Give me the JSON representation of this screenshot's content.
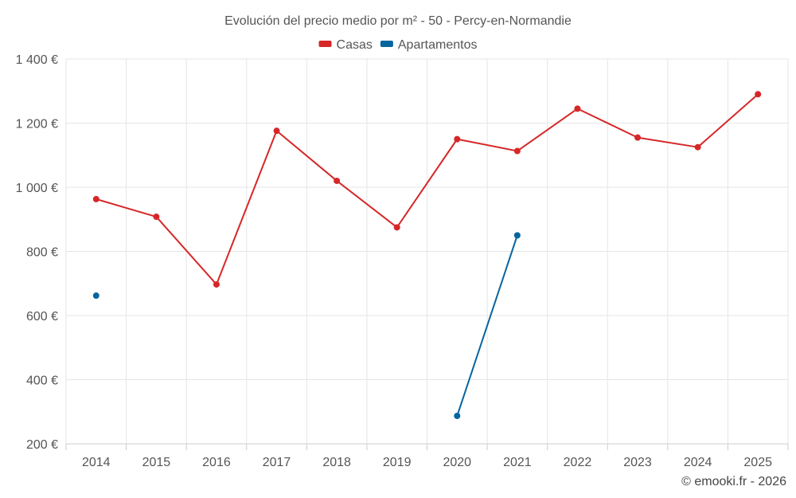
{
  "chart_data": {
    "type": "line",
    "title": "Evolución del precio medio por m² - 50 - Percy-en-Normandie",
    "categories": [
      "2014",
      "2015",
      "2016",
      "2017",
      "2018",
      "2019",
      "2020",
      "2021",
      "2022",
      "2023",
      "2024",
      "2025"
    ],
    "ylim": [
      200,
      1400
    ],
    "yticks": [
      200,
      400,
      600,
      800,
      1000,
      1200,
      1400
    ],
    "ytick_labels": [
      "200 €",
      "400 €",
      "600 €",
      "800 €",
      "1 000 €",
      "1 200 €",
      "1 400 €"
    ],
    "grid": true,
    "legend_position": "top-center",
    "series": [
      {
        "name": "Casas",
        "color": "#d62728",
        "values": [
          963,
          908,
          697,
          1176,
          1020,
          875,
          1150,
          1113,
          1245,
          1155,
          1125,
          1290
        ]
      },
      {
        "name": "Apartamentos",
        "color": "#05659f",
        "values": [
          662,
          null,
          null,
          null,
          null,
          null,
          287,
          850,
          null,
          null,
          null,
          null
        ]
      }
    ],
    "credit": "© emooki.fr - 2026"
  }
}
